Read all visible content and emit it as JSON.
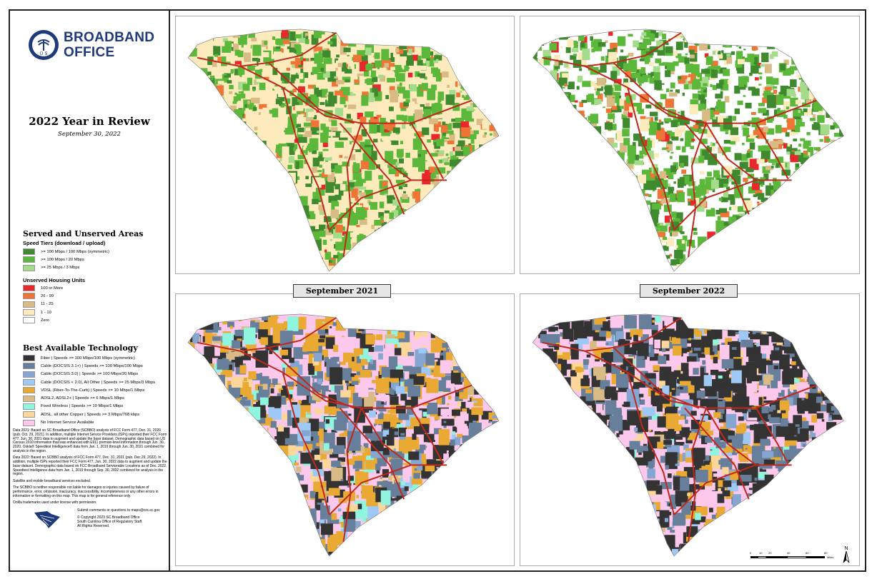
{
  "header": {
    "org_line1": "BROADBAND",
    "org_line2": "OFFICE",
    "seal_text": "ORS",
    "title": "2022 Year in Review",
    "date": "September 30, 2022"
  },
  "served": {
    "title": "Served and Unserved Areas",
    "speed_title": "Speed Tiers (download / upload)",
    "speed_tiers": [
      {
        "label": ">= 100 Mbps / 100 Mbps (symmetric)",
        "color": "#3f8a2e"
      },
      {
        "label": ">= 100 Mbps / 20 Mbps",
        "color": "#5cb83a"
      },
      {
        "label": ">= 25 Mbps / 3 Mbps",
        "color": "#a5dc8c"
      }
    ],
    "unserved_title": "Unserved Housing Units",
    "unserved": [
      {
        "label": "100 or More",
        "color": "#e8282a"
      },
      {
        "label": "26 - 99",
        "color": "#ee7536"
      },
      {
        "label": "11 - 25",
        "color": "#d9bb86"
      },
      {
        "label": "1 - 10",
        "color": "#fdebbd"
      },
      {
        "label": "Zero",
        "color": "#ffffff"
      }
    ]
  },
  "technology": {
    "title": "Best Available Technology",
    "items": [
      {
        "label": "Fiber | Speeds >= 100 Mbps/100 Mbps (symmetric)",
        "color": "#333333"
      },
      {
        "label": "Cable (DOCSIS 3.1+) | Speeds >= 100 Mbps/100 Mbps",
        "color": "#687f9c"
      },
      {
        "label": "Cable (DOCSIS 3.0) | Speeds >= 100 Mbps/20 Mbps",
        "color": "#86a6d2"
      },
      {
        "label": "Cable (DOCSIS < 2.0), All Other | Speeds >= 25 Mbps/3 Mbps",
        "color": "#9fc9f5"
      },
      {
        "label": "VDSL (Fiber-To-The-Curb) | Speeds >= 10 Mbps/1 Mbps",
        "color": "#e9a932"
      },
      {
        "label": "ADSL2, ADSL2+ | Speeds >= 6 Mbps/1 Mbps",
        "color": "#d9bb86"
      },
      {
        "label": "Fixed Wireless | Speeds >= 10 Mbps/1 Mbps",
        "color": "#8ff5de"
      },
      {
        "label": "ADSL, all other Copper | Speeds >= 3 Mbps/768 kbps",
        "color": "#fdd79a"
      },
      {
        "label": "No Internet Service Available",
        "color": "#fcc8ec"
      }
    ]
  },
  "notes": [
    "Data 2021: Based on SC Broadband Office (SCBBO) analysis of FCC Form 477, Dec. 31, 2020 (pub. Oct. 29, 2021). In addition, multiple Internet Service Providers (ISPs) reported their FCC Form 477, Jun. 30, 2021 data to augment and update the base dataset. Demographic data based on US Census 2010 information that was enhanced with E911 premise-level information through Jun. 30, 2020. Ookla® Speedtest Intelligence® data from Jan. 1, 2019 through Jun. 30, 2021 combined for analysis in the region.",
    "Data 2022: Based on SCBBO analysis of FCC Form 477, Dec. 31, 2021 (pub. Dec.29, 2022). In addition, multiple ISPs reported their FCC Form 477, Jun. 30, 2022 data to augment and update the base dataset. Demographic data based on FCC Broadband Serviceable Locations as of Dec. 2022. Speedtest Intelligence data from Jan. 1, 2019 through Sep. 30, 2022 combined for analysis in the region.",
    "Satellite and mobile broadband services excluded.",
    "The SCBBO is neither responsible nor liable for damages or injuries caused by failure of performance, error, omission, inaccuracy, inaccessibility, incompleteness or any other errors in information or formatting on this map. This map is for general reference only.",
    "Ookla trademarks used under license with permission."
  ],
  "footer": {
    "submit": "Submit comments or questions to maps@ors.sc.gov",
    "copyright": "© Copyright 2023 SC Broadband Office",
    "agency": "South Carolina Office of Regulatory Staff.",
    "rights": "All Rights Reserved."
  },
  "maps": {
    "label_2021": "September 2021",
    "label_2022": "September 2022"
  },
  "scale": {
    "ticks": [
      "0",
      "10",
      "20",
      "40",
      "60",
      "80"
    ],
    "unit": "Miles",
    "north": "N"
  }
}
